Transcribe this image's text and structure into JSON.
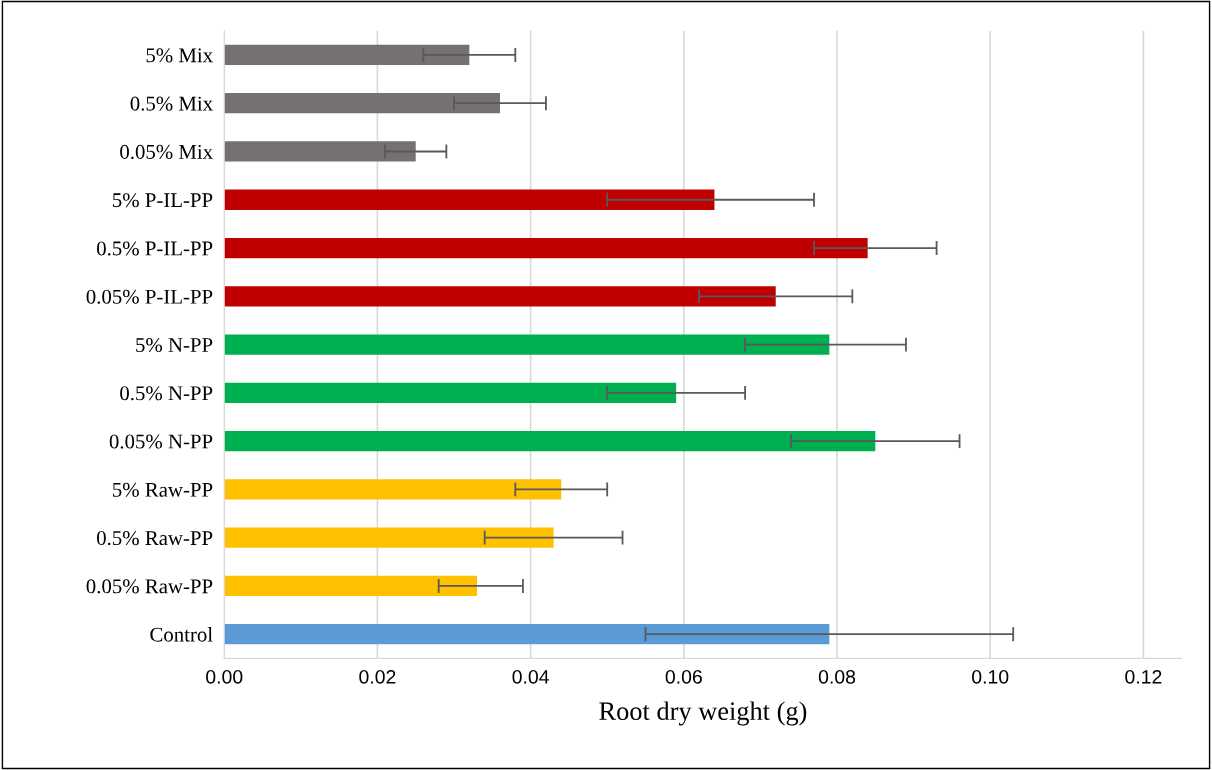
{
  "chart_data": {
    "type": "bar",
    "orientation": "horizontal",
    "xlabel": "Root dry weight (g)",
    "categories": [
      "5% Mix",
      "0.5% Mix",
      "0.05% Mix",
      "5% P-IL-PP",
      "0.5% P-IL-PP",
      "0.05% P-IL-PP",
      "5% N-PP",
      "0.5% N-PP",
      "0.05% N-PP",
      "5% Raw-PP",
      "0.5% Raw-PP",
      "0.05% Raw-PP",
      "Control"
    ],
    "values": [
      0.032,
      0.036,
      0.025,
      0.064,
      0.084,
      0.072,
      0.079,
      0.059,
      0.085,
      0.044,
      0.043,
      0.033,
      0.079
    ],
    "errors": [
      [
        0.026,
        0.038
      ],
      [
        0.03,
        0.042
      ],
      [
        0.021,
        0.029
      ],
      [
        0.05,
        0.077
      ],
      [
        0.077,
        0.093
      ],
      [
        0.062,
        0.082
      ],
      [
        0.068,
        0.089
      ],
      [
        0.05,
        0.068
      ],
      [
        0.074,
        0.096
      ],
      [
        0.038,
        0.05
      ],
      [
        0.034,
        0.052
      ],
      [
        0.028,
        0.039
      ],
      [
        0.055,
        0.103
      ]
    ],
    "colors": [
      "#767171",
      "#767171",
      "#767171",
      "#c00000",
      "#c00000",
      "#c00000",
      "#00b050",
      "#00b050",
      "#00b050",
      "#ffc000",
      "#ffc000",
      "#ffc000",
      "#5b9bd5"
    ],
    "xlim": [
      0,
      0.125
    ],
    "xticks": [
      {
        "value": 0,
        "label": "0.00"
      },
      {
        "value": 0.02,
        "label": "0.02"
      },
      {
        "value": 0.04,
        "label": "0.04"
      },
      {
        "value": 0.06,
        "label": "0.06"
      },
      {
        "value": 0.08,
        "label": "0.08"
      },
      {
        "value": 0.1,
        "label": "0.10"
      },
      {
        "value": 0.12,
        "label": "0.12"
      }
    ],
    "grid": "x"
  }
}
